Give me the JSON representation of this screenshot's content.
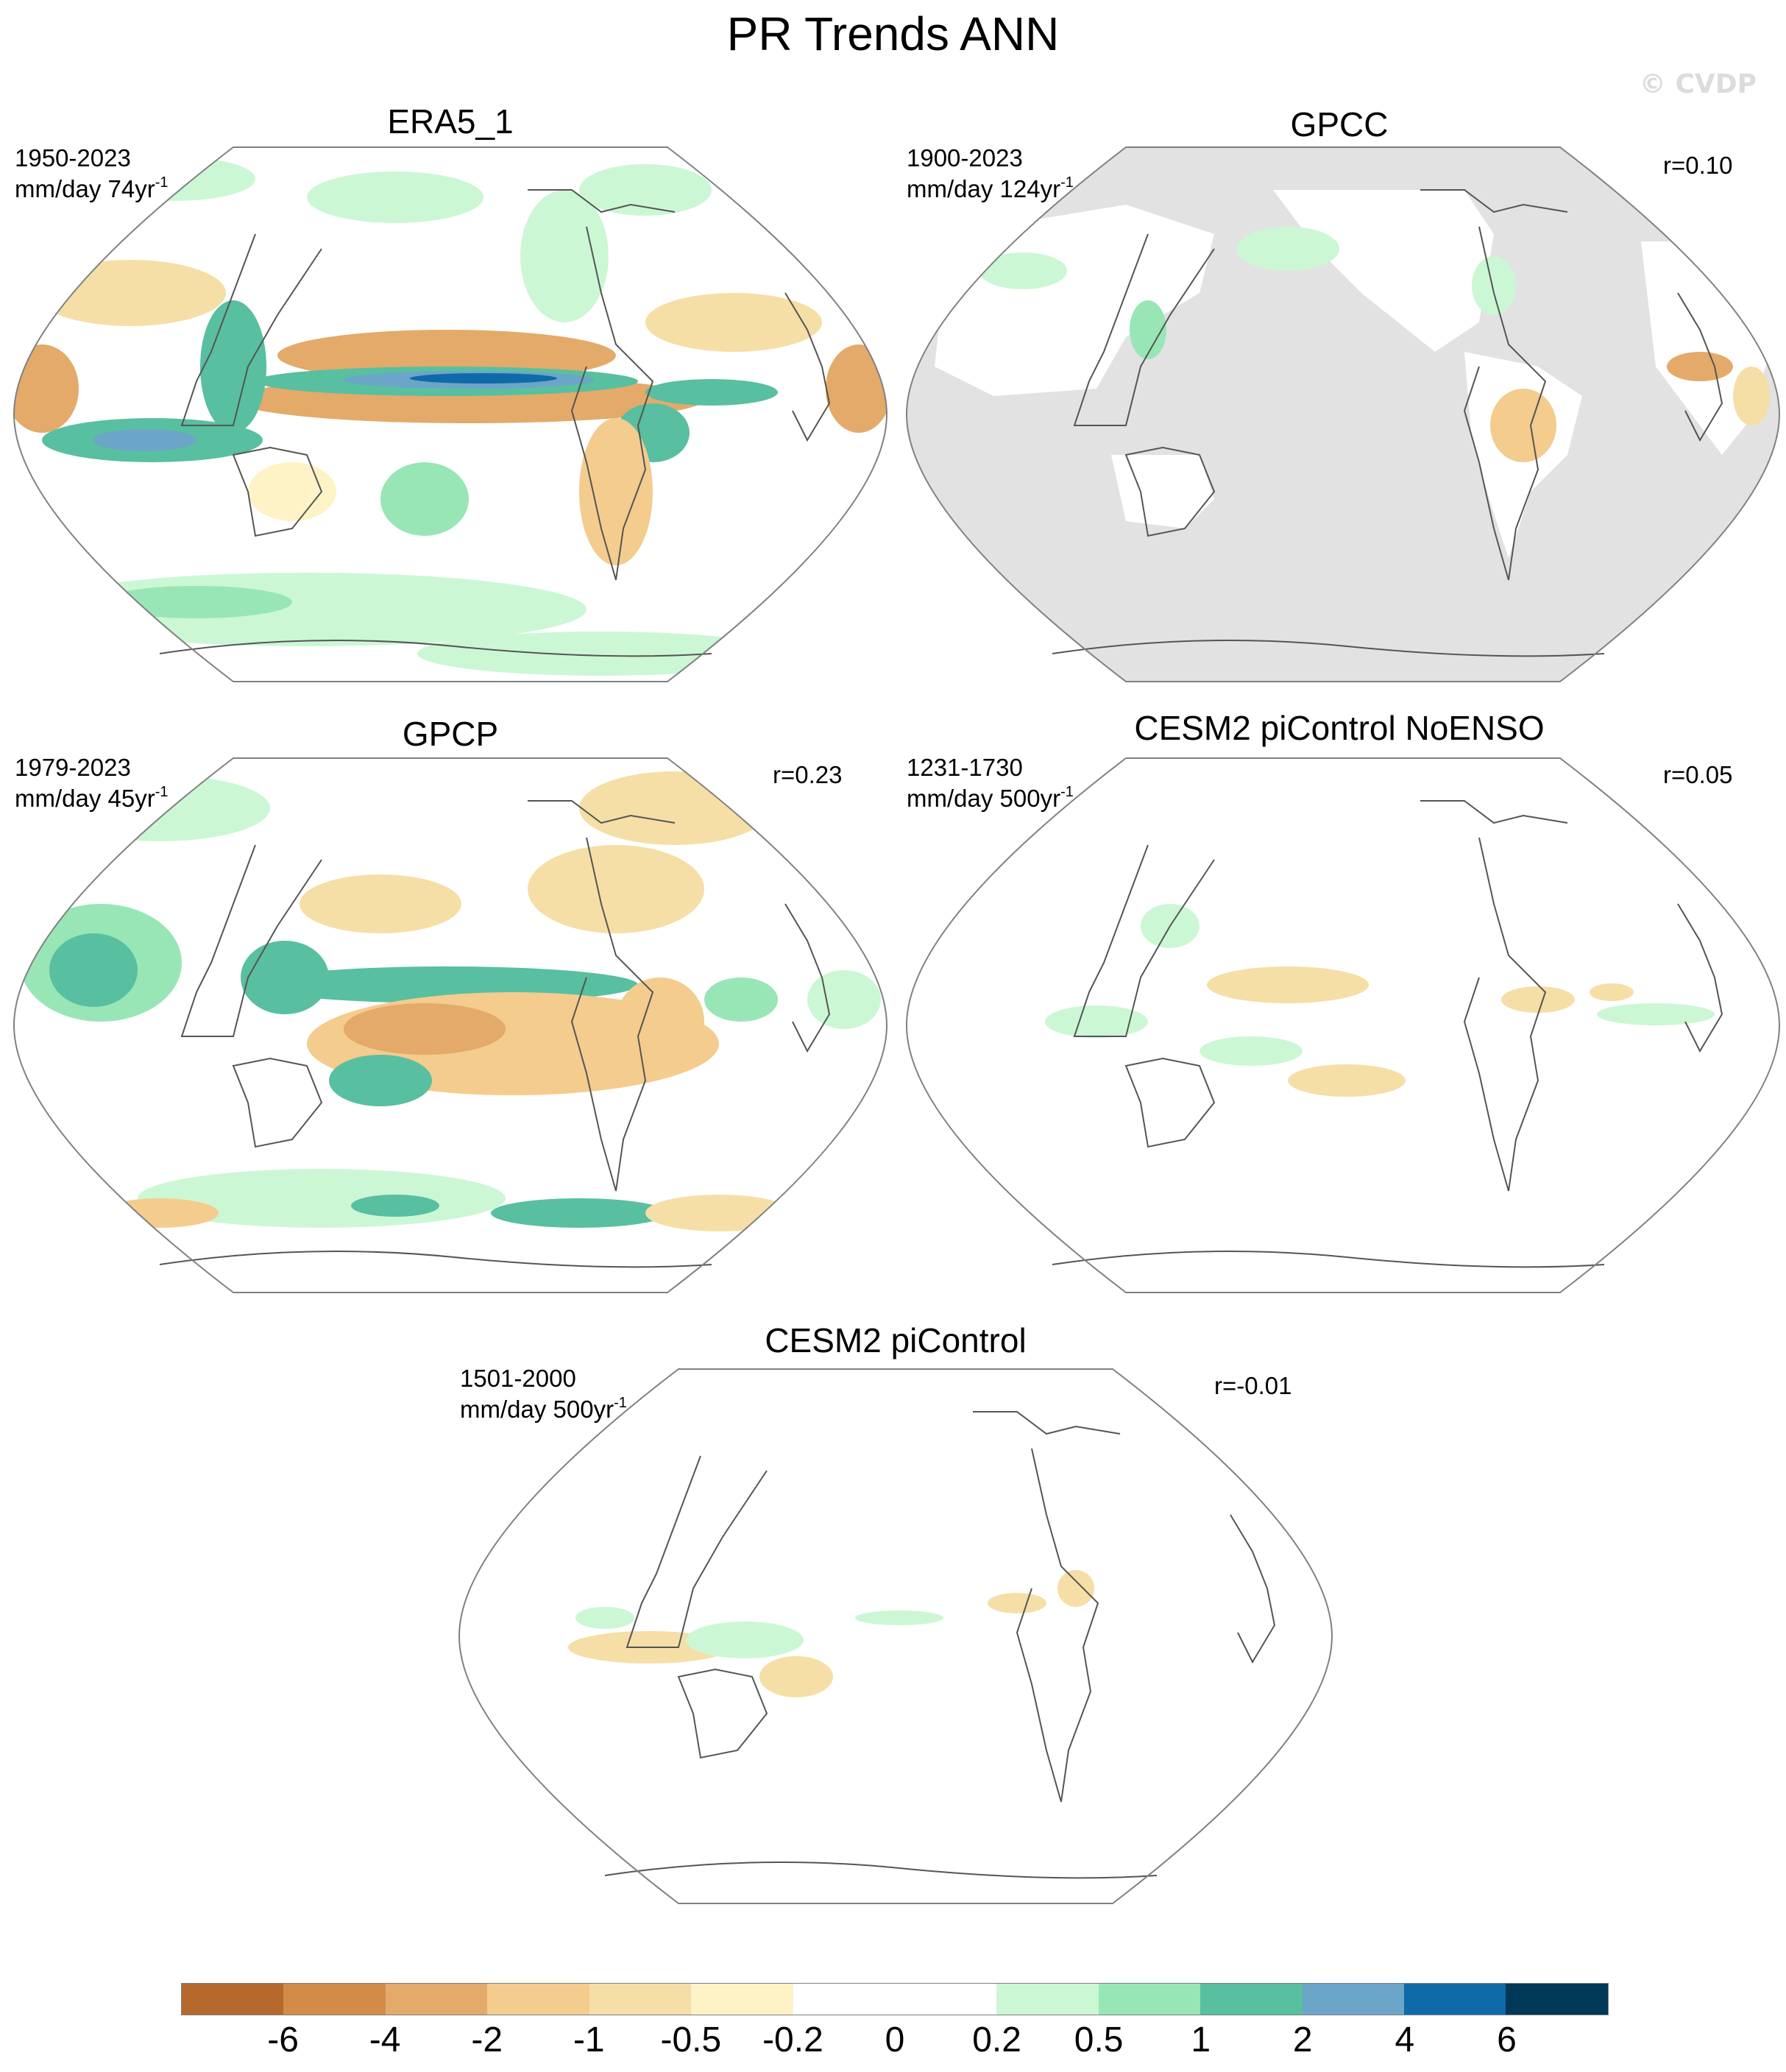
{
  "title": "PR Trends ANN",
  "watermark": "© CVDP",
  "panels": [
    {
      "title": "ERA5_1",
      "years": "1950-2023",
      "units_base": "mm/day 74yr",
      "units_sup": "-1",
      "r": ""
    },
    {
      "title": "GPCC",
      "years": "1900-2023",
      "units_base": "mm/day 124yr",
      "units_sup": "-1",
      "r": "r=0.10"
    },
    {
      "title": "GPCP",
      "years": "1979-2023",
      "units_base": "mm/day 45yr",
      "units_sup": "-1",
      "r": "r=0.23"
    },
    {
      "title": "CESM2 piControl NoENSO",
      "years": "1231-1730",
      "units_base": "mm/day 500yr",
      "units_sup": "-1",
      "r": "r=0.05"
    },
    {
      "title": "CESM2 piControl",
      "years": "1501-2000",
      "units_base": "mm/day 500yr",
      "units_sup": "-1",
      "r": "r=-0.01"
    }
  ],
  "colorbar": {
    "colors": [
      "#b5692c",
      "#d28c47",
      "#e3aa6a",
      "#f3cc8e",
      "#f5dfa6",
      "#fdf3c6",
      "#ffffff",
      "#ffffff",
      "#ccf7d4",
      "#98e6b5",
      "#58bfa0",
      "#6ba5c7",
      "#0f6aa8",
      "#023858"
    ],
    "labels": [
      "-6",
      "-4",
      "-2",
      "-1",
      "-0.5",
      "-0.2",
      "0",
      "0.2",
      "0.5",
      "1",
      "2",
      "4",
      "6"
    ]
  },
  "colors": {
    "land_mask": "#e2e2e2",
    "coast": "#555555",
    "outline": "#808080"
  }
}
